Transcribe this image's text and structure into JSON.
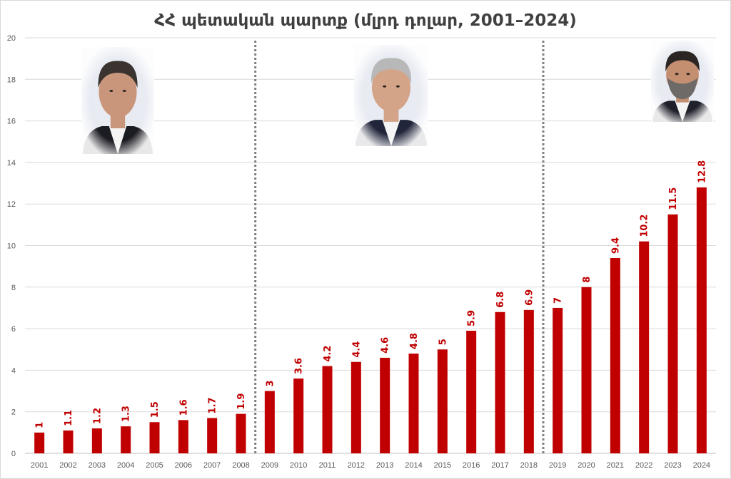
{
  "chart_data": {
    "type": "bar",
    "title": "ՀՀ պետական պարտք (մլրդ դոլար, 2001–2024)",
    "categories": [
      "2001",
      "2002",
      "2003",
      "2004",
      "2005",
      "2006",
      "2007",
      "2008",
      "2009",
      "2010",
      "2011",
      "2012",
      "2013",
      "2014",
      "2015",
      "2016",
      "2017",
      "2018",
      "2019",
      "2020",
      "2021",
      "2022",
      "2023",
      "2024"
    ],
    "series": [
      {
        "values": [
          1,
          1.1,
          1.2,
          1.3,
          1.5,
          1.6,
          1.7,
          1.9,
          3,
          3.6,
          4.2,
          4.4,
          4.6,
          4.8,
          5,
          5.9,
          6.8,
          6.9,
          7,
          8,
          9.4,
          10.2,
          11.5,
          12.8
        ],
        "labels": [
          "1",
          "1.1",
          "1.2",
          "1.3",
          "1.5",
          "1.6",
          "1.7",
          "1.9",
          "3",
          "3.6",
          "4.2",
          "4.4",
          "4.6",
          "4.8",
          "5",
          "5.9",
          "6.8",
          "6.9",
          "7",
          "8",
          "9.4",
          "10.2",
          "11.5",
          "12.8"
        ],
        "color": "#c00000"
      }
    ],
    "ylim": [
      0,
      20
    ],
    "yticks": [
      0,
      2,
      4,
      6,
      8,
      10,
      12,
      14,
      16,
      18,
      20
    ],
    "grid": true,
    "legend": "none",
    "period_dividers_after": [
      "2008",
      "2018"
    ],
    "period_images": [
      "portrait-photo",
      "portrait-photo",
      "portrait-photo"
    ]
  }
}
